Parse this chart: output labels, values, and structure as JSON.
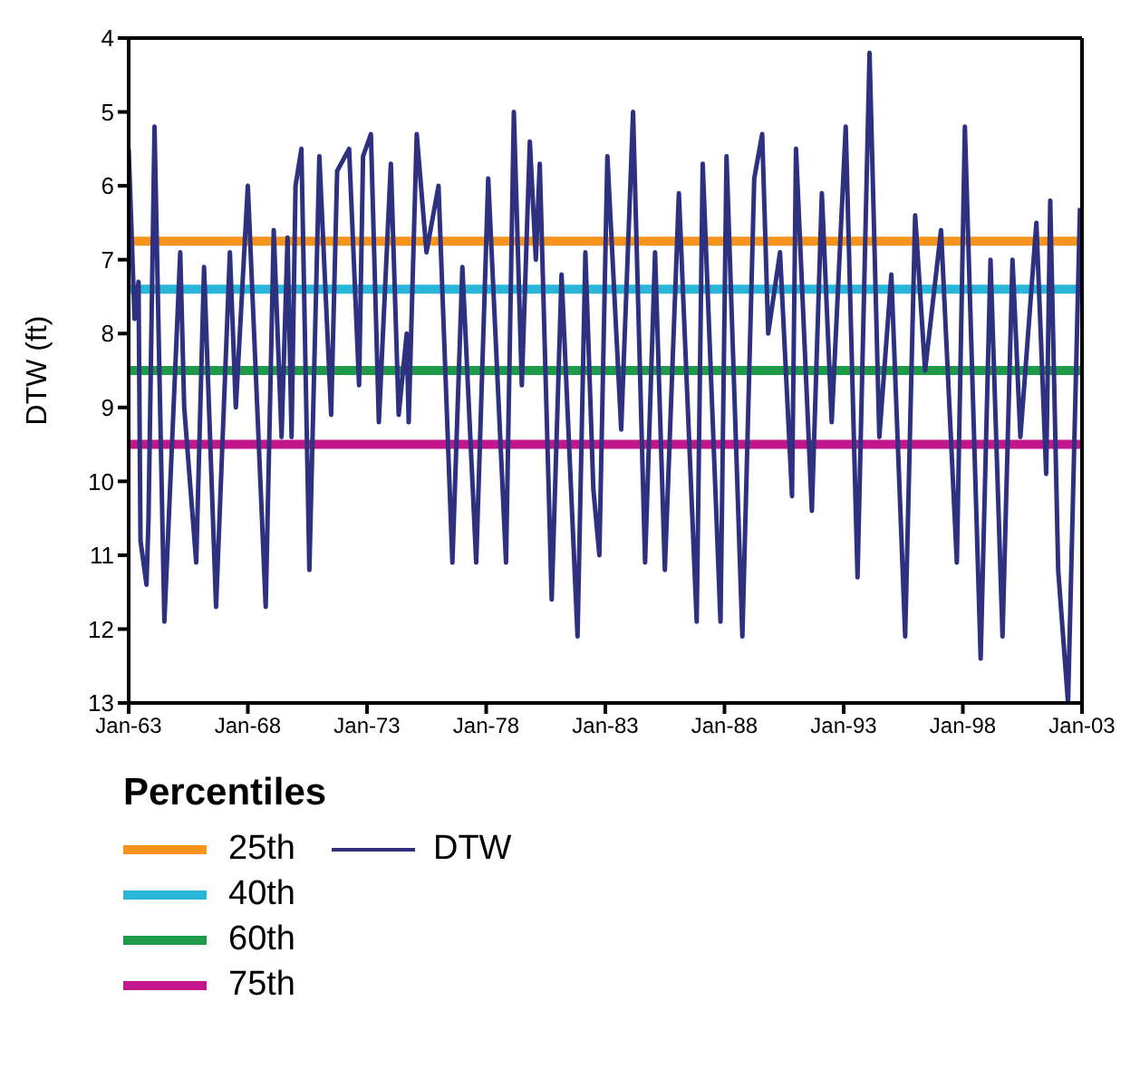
{
  "chart_data": {
    "type": "line",
    "ylabel": "DTW (ft)",
    "legend_title": "Percentiles",
    "legend": "bottom",
    "ylim": [
      13,
      4
    ],
    "yticks": [
      4,
      5,
      6,
      7,
      8,
      9,
      10,
      11,
      12,
      13
    ],
    "xlim": [
      "1963-01",
      "2003-01"
    ],
    "xticks": [
      {
        "value": "1963-01",
        "label": "Jan-63"
      },
      {
        "value": "1968-01",
        "label": "Jan-68"
      },
      {
        "value": "1973-01",
        "label": "Jan-73"
      },
      {
        "value": "1978-01",
        "label": "Jan-78"
      },
      {
        "value": "1983-01",
        "label": "Jan-83"
      },
      {
        "value": "1988-01",
        "label": "Jan-88"
      },
      {
        "value": "1993-01",
        "label": "Jan-93"
      },
      {
        "value": "1998-01",
        "label": "Jan-98"
      },
      {
        "value": "2003-01",
        "label": "Jan-03"
      }
    ],
    "marker": "none",
    "line_style": "solid",
    "x": [
      "1963-01",
      "1963-04",
      "1963-06",
      "1963-07",
      "1963-10",
      "1963-11",
      "1964-02",
      "1964-07",
      "1965-03",
      "1965-05",
      "1965-11",
      "1966-03",
      "1966-09",
      "1967-04",
      "1967-07",
      "1968-01",
      "1968-10",
      "1969-02",
      "1969-06",
      "1969-09",
      "1969-11",
      "1970-01",
      "1970-04",
      "1970-08",
      "1971-01",
      "1971-07",
      "1971-10",
      "1972-04",
      "1972-09",
      "1972-11",
      "1973-03",
      "1973-07",
      "1974-01",
      "1974-05",
      "1974-09",
      "1974-10",
      "1975-02",
      "1975-07",
      "1976-01",
      "1976-08",
      "1977-01",
      "1977-08",
      "1978-02",
      "1978-11",
      "1979-03",
      "1979-07",
      "1979-11",
      "1980-02",
      "1980-04",
      "1980-10",
      "1981-03",
      "1981-11",
      "1982-03",
      "1982-07",
      "1982-10",
      "1983-02",
      "1983-09",
      "1984-03",
      "1984-09",
      "1985-02",
      "1985-07",
      "1986-02",
      "1986-11",
      "1987-02",
      "1987-11",
      "1988-02",
      "1988-10",
      "1989-04",
      "1989-08",
      "1989-11",
      "1990-05",
      "1990-11",
      "1991-01",
      "1991-09",
      "1992-02",
      "1992-07",
      "1993-02",
      "1993-08",
      "1994-02",
      "1994-07",
      "1995-01",
      "1995-08",
      "1996-01",
      "1996-06",
      "1997-02",
      "1997-10",
      "1998-02",
      "1998-10",
      "1999-03",
      "1999-09",
      "2000-02",
      "2000-06",
      "2001-02",
      "2001-07",
      "2001-09",
      "2002-01",
      "2002-06",
      "2002-12"
    ],
    "series": [
      {
        "name": "DTW",
        "color": "#2e3180",
        "values": [
          5.5,
          7.8,
          7.3,
          10.8,
          11.4,
          10.5,
          5.2,
          11.9,
          6.9,
          9.0,
          11.1,
          7.1,
          11.7,
          6.9,
          9.0,
          6.0,
          11.7,
          6.6,
          9.4,
          6.7,
          9.4,
          6.0,
          5.5,
          11.2,
          5.6,
          9.1,
          5.8,
          5.5,
          8.7,
          5.6,
          5.3,
          9.2,
          5.7,
          9.1,
          8.0,
          9.2,
          5.3,
          6.9,
          6.0,
          11.1,
          7.1,
          11.1,
          5.9,
          11.1,
          5.0,
          8.7,
          5.4,
          7.0,
          5.7,
          11.6,
          7.2,
          12.1,
          6.9,
          10.1,
          11.0,
          5.6,
          9.3,
          5.0,
          11.1,
          6.9,
          11.2,
          6.1,
          11.9,
          5.7,
          11.9,
          5.6,
          12.1,
          5.9,
          5.3,
          8.0,
          6.9,
          10.2,
          5.5,
          10.4,
          6.1,
          9.2,
          5.2,
          11.3,
          4.2,
          9.4,
          7.2,
          12.1,
          6.4,
          8.5,
          6.6,
          11.1,
          5.2,
          12.4,
          7.0,
          12.1,
          7.0,
          9.4,
          6.5,
          9.9,
          6.2,
          11.2,
          13.0,
          6.3
        ]
      }
    ],
    "ref_lines": [
      {
        "axis": "y",
        "value": 6.75,
        "label": "25th",
        "color": "#f7941d"
      },
      {
        "axis": "y",
        "value": 7.4,
        "label": "40th",
        "color": "#29b6d8"
      },
      {
        "axis": "y",
        "value": 8.5,
        "label": "60th",
        "color": "#1f9a48"
      },
      {
        "axis": "y",
        "value": 9.5,
        "label": "75th",
        "color": "#c4168c"
      }
    ]
  }
}
